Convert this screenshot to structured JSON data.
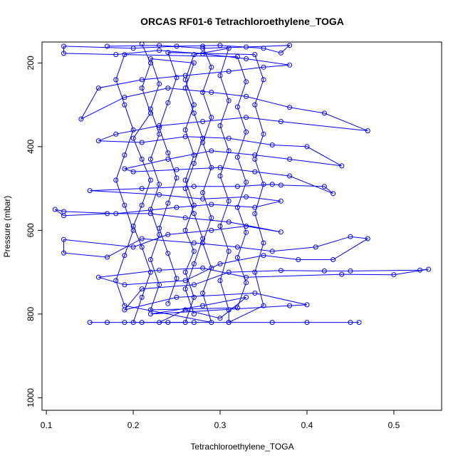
{
  "colors": {
    "series": "#0000ff",
    "axis": "#000000",
    "background": "#ffffff"
  },
  "chart_data": {
    "type": "line",
    "title": "ORCAS RF01-6 Tetrachloroethylene_TOGA",
    "xlabel": "Tetrachloroethylene_TOGA",
    "ylabel": "Pressure (mbar)",
    "xlim": [
      0.095,
      0.555
    ],
    "ylim": [
      1030,
      150
    ],
    "y_reversed": true,
    "x_ticks": [
      0.1,
      0.2,
      0.3,
      0.4,
      0.5
    ],
    "x_tick_labels": [
      "0.1",
      "0.2",
      "0.3",
      "0.4",
      "0.5"
    ],
    "y_ticks": [
      200,
      400,
      600,
      800,
      1000
    ],
    "y_tick_labels": [
      "200",
      "400",
      "600",
      "800",
      "1000"
    ],
    "grid": false,
    "markers": "open-circle",
    "series": [
      {
        "points": [
          [
            0.15,
            820
          ],
          [
            0.19,
            820
          ],
          [
            0.21,
            820
          ],
          [
            0.24,
            820
          ],
          [
            0.27,
            820
          ],
          [
            0.31,
            820
          ],
          [
            0.36,
            820
          ],
          [
            0.4,
            820
          ],
          [
            0.45,
            820
          ],
          [
            0.46,
            820
          ],
          [
            0.17,
            820
          ],
          [
            0.23,
            820
          ],
          [
            0.26,
            790
          ],
          [
            0.3,
            810
          ],
          [
            0.33,
            760
          ],
          [
            0.28,
            780
          ],
          [
            0.22,
            800
          ],
          [
            0.38,
            780
          ],
          [
            0.4,
            778
          ],
          [
            0.34,
            750
          ],
          [
            0.25,
            760
          ],
          [
            0.19,
            790
          ],
          [
            0.21,
            740
          ],
          [
            0.27,
            730
          ],
          [
            0.31,
            700
          ],
          [
            0.37,
            696
          ],
          [
            0.42,
            697
          ],
          [
            0.45,
            697
          ],
          [
            0.53,
            695
          ],
          [
            0.54,
            693
          ],
          [
            0.5,
            706
          ],
          [
            0.44,
            705
          ],
          [
            0.33,
            712
          ],
          [
            0.28,
            690
          ],
          [
            0.23,
            695
          ],
          [
            0.16,
            712
          ],
          [
            0.19,
            730
          ],
          [
            0.26,
            720
          ],
          [
            0.3,
            680
          ],
          [
            0.35,
            660
          ],
          [
            0.39,
            670
          ],
          [
            0.43,
            670
          ],
          [
            0.47,
            620
          ],
          [
            0.45,
            615
          ],
          [
            0.41,
            640
          ],
          [
            0.36,
            650
          ],
          [
            0.32,
            640
          ],
          [
            0.27,
            630
          ],
          [
            0.21,
            620
          ],
          [
            0.17,
            664
          ],
          [
            0.12,
            654
          ],
          [
            0.12,
            622
          ],
          [
            0.2,
            640
          ],
          [
            0.24,
            610
          ],
          [
            0.29,
            600
          ],
          [
            0.33,
            590
          ],
          [
            0.37,
            604
          ],
          [
            0.31,
            580
          ],
          [
            0.26,
            570
          ],
          [
            0.22,
            560
          ],
          [
            0.17,
            560
          ],
          [
            0.12,
            565
          ],
          [
            0.11,
            550
          ],
          [
            0.12,
            555
          ],
          [
            0.18,
            560
          ],
          [
            0.25,
            545
          ],
          [
            0.29,
            538
          ],
          [
            0.34,
            545
          ],
          [
            0.37,
            530
          ],
          [
            0.33,
            520
          ],
          [
            0.28,
            525
          ],
          [
            0.23,
            515
          ],
          [
            0.15,
            505
          ],
          [
            0.21,
            500
          ],
          [
            0.27,
            495
          ],
          [
            0.32,
            495
          ],
          [
            0.36,
            490
          ],
          [
            0.37,
            492
          ],
          [
            0.42,
            495
          ],
          [
            0.43,
            512
          ],
          [
            0.38,
            470
          ],
          [
            0.34,
            460
          ],
          [
            0.3,
            450
          ],
          [
            0.25,
            455
          ],
          [
            0.2,
            460
          ],
          [
            0.19,
            453
          ],
          [
            0.24,
            430
          ],
          [
            0.29,
            410
          ],
          [
            0.34,
            420
          ],
          [
            0.38,
            430
          ],
          [
            0.44,
            446
          ],
          [
            0.4,
            400
          ],
          [
            0.36,
            396
          ],
          [
            0.31,
            380
          ],
          [
            0.26,
            376
          ],
          [
            0.21,
            390
          ],
          [
            0.16,
            386
          ],
          [
            0.18,
            370
          ],
          [
            0.23,
            350
          ],
          [
            0.28,
            340
          ],
          [
            0.33,
            330
          ],
          [
            0.37,
            340
          ],
          [
            0.47,
            362
          ],
          [
            0.42,
            320
          ],
          [
            0.38,
            306
          ],
          [
            0.33,
            280
          ],
          [
            0.29,
            270
          ],
          [
            0.24,
            260
          ],
          [
            0.19,
            282
          ],
          [
            0.14,
            334
          ],
          [
            0.16,
            260
          ],
          [
            0.21,
            240
          ],
          [
            0.26,
            230
          ],
          [
            0.31,
            220
          ],
          [
            0.35,
            210
          ],
          [
            0.38,
            205
          ],
          [
            0.33,
            190
          ],
          [
            0.28,
            178
          ],
          [
            0.23,
            170
          ],
          [
            0.18,
            180
          ],
          [
            0.12,
            177
          ],
          [
            0.12,
            160
          ],
          [
            0.2,
            165
          ],
          [
            0.25,
            160
          ],
          [
            0.3,
            158
          ],
          [
            0.35,
            165
          ],
          [
            0.37,
            176
          ],
          [
            0.38,
            158
          ],
          [
            0.33,
            162
          ],
          [
            0.28,
            165
          ],
          [
            0.23,
            158
          ],
          [
            0.17,
            160
          ]
        ]
      },
      {
        "points": [
          [
            0.21,
            155
          ],
          [
            0.22,
            200
          ],
          [
            0.21,
            260
          ],
          [
            0.22,
            320
          ],
          [
            0.2,
            380
          ],
          [
            0.21,
            430
          ],
          [
            0.22,
            480
          ],
          [
            0.21,
            540
          ],
          [
            0.2,
            590
          ],
          [
            0.21,
            640
          ],
          [
            0.22,
            700
          ],
          [
            0.21,
            760
          ],
          [
            0.2,
            820
          ],
          [
            0.26,
            820
          ],
          [
            0.27,
            760
          ],
          [
            0.26,
            700
          ],
          [
            0.27,
            650
          ],
          [
            0.26,
            600
          ],
          [
            0.27,
            540
          ],
          [
            0.26,
            480
          ],
          [
            0.27,
            420
          ],
          [
            0.26,
            360
          ],
          [
            0.27,
            300
          ],
          [
            0.26,
            240
          ],
          [
            0.27,
            180
          ],
          [
            0.31,
            165
          ],
          [
            0.3,
            230
          ],
          [
            0.31,
            290
          ],
          [
            0.3,
            350
          ],
          [
            0.31,
            410
          ],
          [
            0.3,
            470
          ],
          [
            0.31,
            530
          ],
          [
            0.3,
            590
          ],
          [
            0.31,
            650
          ],
          [
            0.3,
            720
          ],
          [
            0.31,
            790
          ],
          [
            0.31,
            820
          ],
          [
            0.35,
            780
          ],
          [
            0.34,
            700
          ],
          [
            0.35,
            630
          ],
          [
            0.34,
            560
          ],
          [
            0.35,
            490
          ],
          [
            0.34,
            430
          ],
          [
            0.35,
            370
          ],
          [
            0.34,
            300
          ],
          [
            0.35,
            240
          ],
          [
            0.34,
            180
          ],
          [
            0.24,
            175
          ],
          [
            0.25,
            235
          ],
          [
            0.24,
            295
          ],
          [
            0.23,
            355
          ],
          [
            0.24,
            415
          ],
          [
            0.25,
            475
          ],
          [
            0.24,
            535
          ],
          [
            0.23,
            595
          ],
          [
            0.24,
            655
          ],
          [
            0.25,
            715
          ],
          [
            0.24,
            775
          ]
        ]
      },
      {
        "points": [
          [
            0.28,
            160
          ],
          [
            0.29,
            210
          ],
          [
            0.28,
            270
          ],
          [
            0.29,
            330
          ],
          [
            0.28,
            390
          ],
          [
            0.29,
            450
          ],
          [
            0.28,
            510
          ],
          [
            0.29,
            570
          ],
          [
            0.28,
            630
          ],
          [
            0.29,
            690
          ],
          [
            0.28,
            750
          ],
          [
            0.29,
            820
          ],
          [
            0.19,
            780
          ],
          [
            0.18,
            720
          ],
          [
            0.19,
            660
          ],
          [
            0.2,
            600
          ],
          [
            0.19,
            540
          ],
          [
            0.18,
            480
          ],
          [
            0.19,
            420
          ],
          [
            0.2,
            360
          ],
          [
            0.19,
            300
          ],
          [
            0.18,
            240
          ],
          [
            0.19,
            180
          ],
          [
            0.32,
            185
          ],
          [
            0.33,
            245
          ],
          [
            0.32,
            305
          ],
          [
            0.33,
            365
          ],
          [
            0.32,
            425
          ],
          [
            0.33,
            485
          ],
          [
            0.32,
            545
          ],
          [
            0.33,
            605
          ],
          [
            0.32,
            665
          ],
          [
            0.33,
            725
          ],
          [
            0.32,
            785
          ],
          [
            0.22,
            790
          ],
          [
            0.23,
            730
          ],
          [
            0.22,
            670
          ],
          [
            0.23,
            610
          ],
          [
            0.22,
            550
          ],
          [
            0.23,
            490
          ],
          [
            0.22,
            430
          ],
          [
            0.23,
            370
          ],
          [
            0.22,
            310
          ],
          [
            0.23,
            250
          ],
          [
            0.22,
            190
          ],
          [
            0.27,
            200
          ],
          [
            0.26,
            260
          ],
          [
            0.27,
            320
          ],
          [
            0.28,
            380
          ],
          [
            0.27,
            440
          ],
          [
            0.26,
            500
          ],
          [
            0.27,
            560
          ],
          [
            0.28,
            620
          ],
          [
            0.27,
            680
          ],
          [
            0.26,
            740
          ],
          [
            0.27,
            800
          ]
        ]
      }
    ]
  }
}
